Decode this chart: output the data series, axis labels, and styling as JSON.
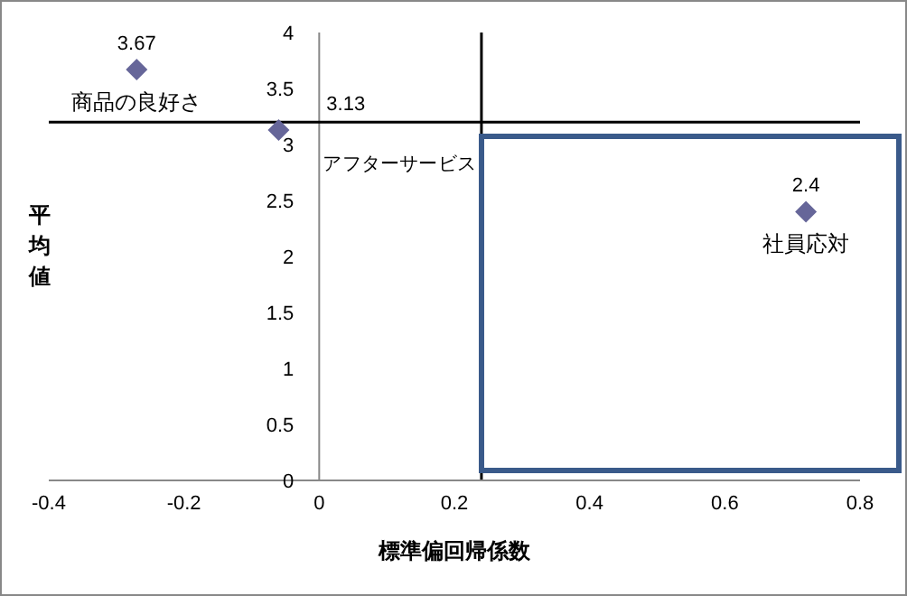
{
  "chart_data": {
    "type": "scatter",
    "xlabel": "標準偏回帰係数",
    "ylabel": "平均値",
    "series": [
      {
        "color": "#666699",
        "x": [
          -0.27,
          -0.06,
          0.72
        ],
        "values": [
          3.67,
          3.13,
          2.4
        ]
      }
    ],
    "annotations": [
      {
        "text": "商品の良好さ",
        "x": -0.27,
        "y": 3.67
      },
      {
        "text": "アフターサービス",
        "x": -0.06,
        "y": 3.13
      },
      {
        "text": "社員応対",
        "x": 0.72,
        "y": 2.4
      }
    ],
    "data_labels": true,
    "marker": "diamond",
    "xlim": [
      -0.4,
      0.8
    ],
    "xticks": [
      -0.4,
      -0.2,
      0,
      0.2,
      0.4,
      0.6,
      0.8
    ],
    "ylim": [
      0,
      4
    ],
    "yticks": [
      0,
      0.5,
      1,
      1.5,
      2,
      2.5,
      3,
      3.5,
      4
    ],
    "ref_lines": [
      {
        "axis": "y",
        "value": 3.2,
        "color": "#000000"
      },
      {
        "axis": "x",
        "value": 0.24,
        "color": "#000000"
      }
    ]
  }
}
